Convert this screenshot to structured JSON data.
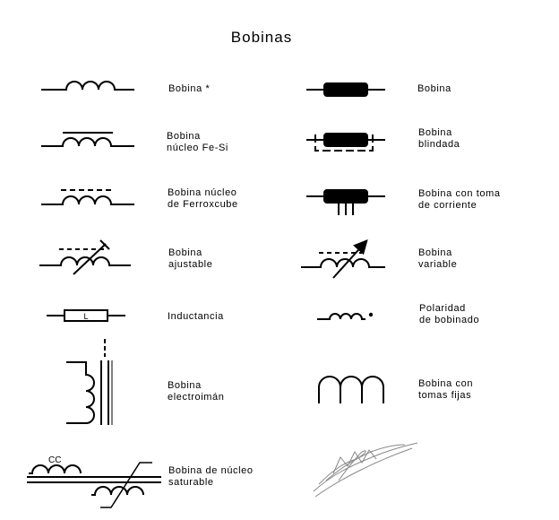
{
  "title": "Bobinas",
  "symbols": [
    {
      "id": "bobina-star",
      "lines": [
        "Bobina *"
      ]
    },
    {
      "id": "bobina-fesi",
      "lines": [
        "Bobina",
        "núcleo Fe-Si"
      ]
    },
    {
      "id": "bobina-ferroxcube",
      "lines": [
        "Bobina núcleo",
        "de Ferroxcube"
      ]
    },
    {
      "id": "bobina-ajustable",
      "lines": [
        "Bobina",
        "ajustable"
      ]
    },
    {
      "id": "inductancia",
      "lines": [
        "Inductancia"
      ],
      "marking": "L"
    },
    {
      "id": "bobina-electroiman",
      "lines": [
        "Bobina",
        "electroimán"
      ]
    },
    {
      "id": "bobina-saturable",
      "lines": [
        "Bobina de núcleo",
        "saturable"
      ],
      "marking": "CC"
    },
    {
      "id": "bobina",
      "lines": [
        "Bobina"
      ]
    },
    {
      "id": "bobina-blindada",
      "lines": [
        "Bobina",
        "blindada"
      ]
    },
    {
      "id": "bobina-toma",
      "lines": [
        "Bobina con toma",
        "de corriente"
      ]
    },
    {
      "id": "bobina-variable",
      "lines": [
        "Bobina",
        "variable"
      ]
    },
    {
      "id": "polaridad",
      "lines": [
        "Polaridad",
        "de bobinado"
      ]
    },
    {
      "id": "bobina-tomas-fijas",
      "lines": [
        "Bobina con",
        "tomas fijas"
      ]
    }
  ]
}
